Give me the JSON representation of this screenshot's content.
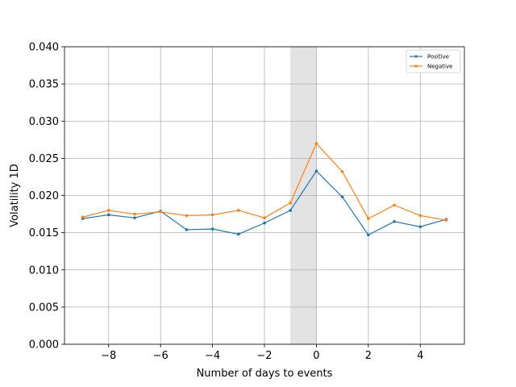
{
  "chart_data": {
    "type": "line",
    "xlabel": "Number of days to events",
    "ylabel": "Volatility 1D",
    "xlim": [
      -9.7,
      5.7
    ],
    "ylim": [
      0.0,
      0.04
    ],
    "xticks": [
      -8,
      -6,
      -4,
      -2,
      0,
      2,
      4
    ],
    "xtick_labels": [
      "−8",
      "−6",
      "−4",
      "−2",
      "0",
      "2",
      "4"
    ],
    "yticks": [
      0.0,
      0.005,
      0.01,
      0.015,
      0.02,
      0.025,
      0.03,
      0.035,
      0.04
    ],
    "ytick_labels": [
      "0.000",
      "0.005",
      "0.010",
      "0.015",
      "0.020",
      "0.025",
      "0.030",
      "0.035",
      "0.040"
    ],
    "grid": true,
    "legend_position": "top-right",
    "shaded_region": {
      "x_start": -1,
      "x_end": 0,
      "color": "#e3e3e3"
    },
    "x": [
      -9,
      -8,
      -7,
      -6,
      -5,
      -4,
      -3,
      -2,
      -1,
      0,
      1,
      2,
      3,
      4,
      5
    ],
    "series": [
      {
        "name": "Positive",
        "color": "#1f77b4",
        "values": [
          0.0169,
          0.0174,
          0.017,
          0.0179,
          0.0154,
          0.0155,
          0.0148,
          0.0163,
          0.018,
          0.0233,
          0.0198,
          0.0147,
          0.0165,
          0.0158,
          0.0168
        ]
      },
      {
        "name": "Negative",
        "color": "#ff7f0e",
        "values": [
          0.0171,
          0.018,
          0.0175,
          0.0178,
          0.0173,
          0.0174,
          0.018,
          0.017,
          0.019,
          0.027,
          0.0232,
          0.0169,
          0.0187,
          0.0173,
          0.0167
        ]
      }
    ]
  }
}
